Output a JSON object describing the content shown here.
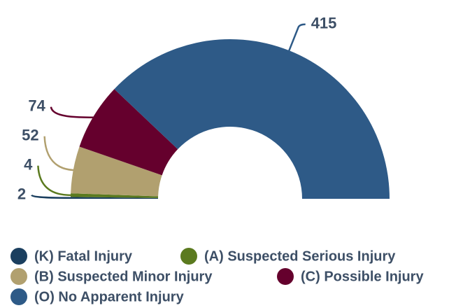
{
  "chart_data": {
    "type": "semi-donut",
    "categories": [
      "(K) Fatal Injury",
      "(A) Suspected Serious Injury",
      "(B) Suspected Minor Injury",
      "(C) Possible Injury",
      "(O) No Apparent Injury"
    ],
    "values": [
      2,
      4,
      52,
      74,
      415
    ],
    "colors": [
      "#1b3f5f",
      "#5b7a1f",
      "#b1a06f",
      "#65002d",
      "#2e5a87"
    ]
  }
}
